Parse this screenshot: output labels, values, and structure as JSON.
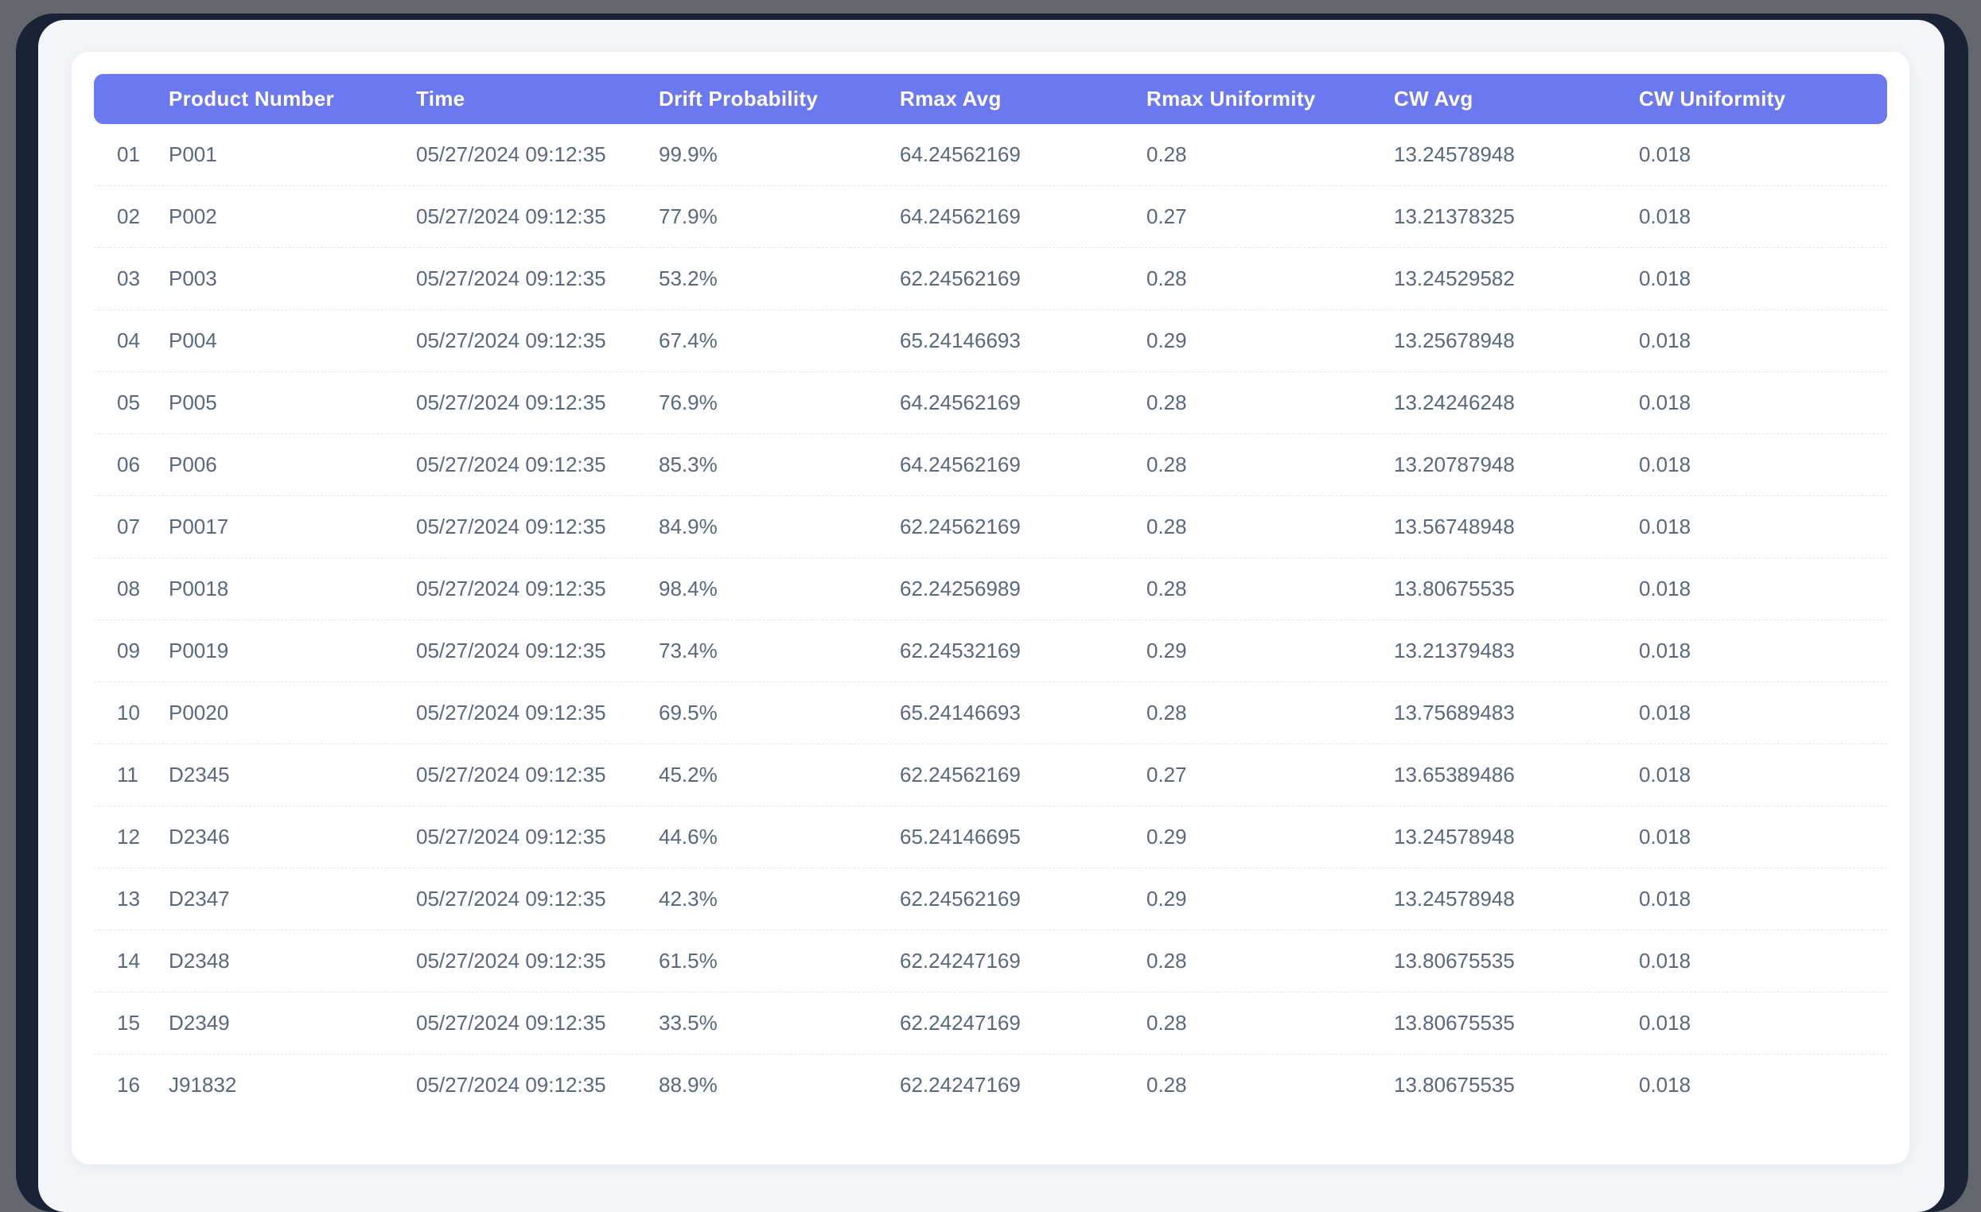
{
  "page": {
    "background_color": "#64676e",
    "frame_color": "#1a2336",
    "panel_color": "#f4f5f8",
    "card_color": "#ffffff"
  },
  "table": {
    "header_bg_color": "#6c78f0",
    "header_text_color": "#ffffff",
    "row_text_color": "#5a6780",
    "columns": [
      "Product Number",
      "Time",
      "Drift Probability",
      "Rmax Avg",
      "Rmax Uniformity",
      "CW Avg",
      "CW Uniformity"
    ],
    "rows": [
      {
        "index": "01",
        "product_number": "P001",
        "time": "05/27/2024 09:12:35",
        "drift_probability": "99.9%",
        "rmax_avg": "64.24562169",
        "rmax_uniformity": "0.28",
        "cw_avg": "13.24578948",
        "cw_uniformity": "0.018"
      },
      {
        "index": "02",
        "product_number": "P002",
        "time": "05/27/2024 09:12:35",
        "drift_probability": "77.9%",
        "rmax_avg": "64.24562169",
        "rmax_uniformity": "0.27",
        "cw_avg": "13.21378325",
        "cw_uniformity": "0.018"
      },
      {
        "index": "03",
        "product_number": "P003",
        "time": "05/27/2024 09:12:35",
        "drift_probability": "53.2%",
        "rmax_avg": "62.24562169",
        "rmax_uniformity": "0.28",
        "cw_avg": "13.24529582",
        "cw_uniformity": "0.018"
      },
      {
        "index": "04",
        "product_number": "P004",
        "time": "05/27/2024 09:12:35",
        "drift_probability": "67.4%",
        "rmax_avg": "65.24146693",
        "rmax_uniformity": "0.29",
        "cw_avg": "13.25678948",
        "cw_uniformity": "0.018"
      },
      {
        "index": "05",
        "product_number": "P005",
        "time": "05/27/2024 09:12:35",
        "drift_probability": "76.9%",
        "rmax_avg": "64.24562169",
        "rmax_uniformity": "0.28",
        "cw_avg": "13.24246248",
        "cw_uniformity": "0.018"
      },
      {
        "index": "06",
        "product_number": "P006",
        "time": "05/27/2024 09:12:35",
        "drift_probability": "85.3%",
        "rmax_avg": "64.24562169",
        "rmax_uniformity": "0.28",
        "cw_avg": "13.20787948",
        "cw_uniformity": "0.018"
      },
      {
        "index": "07",
        "product_number": "P0017",
        "time": "05/27/2024 09:12:35",
        "drift_probability": "84.9%",
        "rmax_avg": "62.24562169",
        "rmax_uniformity": "0.28",
        "cw_avg": "13.56748948",
        "cw_uniformity": "0.018"
      },
      {
        "index": "08",
        "product_number": "P0018",
        "time": "05/27/2024 09:12:35",
        "drift_probability": "98.4%",
        "rmax_avg": "62.24256989",
        "rmax_uniformity": "0.28",
        "cw_avg": "13.80675535",
        "cw_uniformity": "0.018"
      },
      {
        "index": "09",
        "product_number": "P0019",
        "time": "05/27/2024 09:12:35",
        "drift_probability": "73.4%",
        "rmax_avg": "62.24532169",
        "rmax_uniformity": "0.29",
        "cw_avg": "13.21379483",
        "cw_uniformity": "0.018"
      },
      {
        "index": "10",
        "product_number": "P0020",
        "time": "05/27/2024 09:12:35",
        "drift_probability": "69.5%",
        "rmax_avg": "65.24146693",
        "rmax_uniformity": "0.28",
        "cw_avg": "13.75689483",
        "cw_uniformity": "0.018"
      },
      {
        "index": "11",
        "product_number": "D2345",
        "time": "05/27/2024 09:12:35",
        "drift_probability": "45.2%",
        "rmax_avg": "62.24562169",
        "rmax_uniformity": "0.27",
        "cw_avg": "13.65389486",
        "cw_uniformity": "0.018"
      },
      {
        "index": "12",
        "product_number": "D2346",
        "time": "05/27/2024 09:12:35",
        "drift_probability": "44.6%",
        "rmax_avg": "65.24146695",
        "rmax_uniformity": "0.29",
        "cw_avg": "13.24578948",
        "cw_uniformity": "0.018"
      },
      {
        "index": "13",
        "product_number": "D2347",
        "time": "05/27/2024 09:12:35",
        "drift_probability": "42.3%",
        "rmax_avg": "62.24562169",
        "rmax_uniformity": "0.29",
        "cw_avg": "13.24578948",
        "cw_uniformity": "0.018"
      },
      {
        "index": "14",
        "product_number": "D2348",
        "time": "05/27/2024 09:12:35",
        "drift_probability": "61.5%",
        "rmax_avg": "62.24247169",
        "rmax_uniformity": "0.28",
        "cw_avg": "13.80675535",
        "cw_uniformity": "0.018"
      },
      {
        "index": "15",
        "product_number": "D2349",
        "time": "05/27/2024 09:12:35",
        "drift_probability": "33.5%",
        "rmax_avg": "62.24247169",
        "rmax_uniformity": "0.28",
        "cw_avg": "13.80675535",
        "cw_uniformity": "0.018"
      },
      {
        "index": "16",
        "product_number": "J91832",
        "time": "05/27/2024 09:12:35",
        "drift_probability": "88.9%",
        "rmax_avg": "62.24247169",
        "rmax_uniformity": "0.28",
        "cw_avg": "13.80675535",
        "cw_uniformity": "0.018"
      }
    ]
  }
}
